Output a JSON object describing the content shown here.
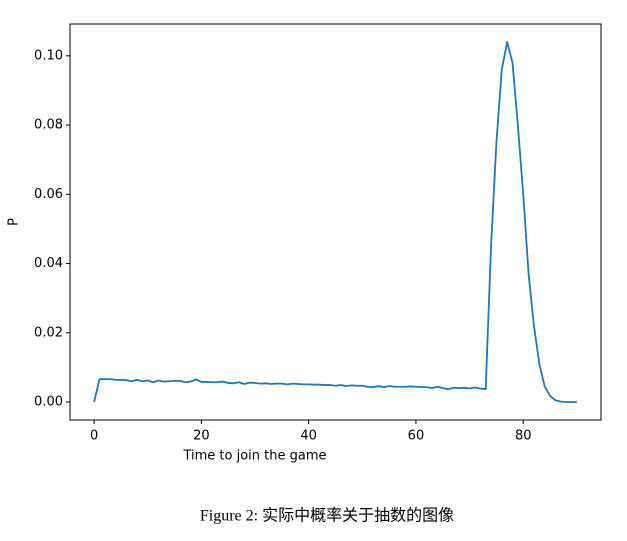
{
  "chart_data": {
    "type": "line",
    "x_label": "Time to join the game",
    "y_label": "P",
    "x": [
      0,
      1,
      2,
      3,
      4,
      5,
      6,
      7,
      8,
      9,
      10,
      11,
      12,
      13,
      14,
      15,
      16,
      17,
      18,
      19,
      20,
      21,
      22,
      23,
      24,
      25,
      26,
      27,
      28,
      29,
      30,
      31,
      32,
      33,
      34,
      35,
      36,
      37,
      38,
      39,
      40,
      41,
      42,
      43,
      44,
      45,
      46,
      47,
      48,
      49,
      50,
      51,
      52,
      53,
      54,
      55,
      56,
      57,
      58,
      59,
      60,
      61,
      62,
      63,
      64,
      65,
      66,
      67,
      68,
      69,
      70,
      71,
      72,
      73,
      74,
      75,
      76,
      77,
      78,
      79,
      80,
      81,
      82,
      83,
      84,
      85,
      86,
      87,
      88,
      89,
      90
    ],
    "values": [
      0,
      0.0066,
      0.0066,
      0.0066,
      0.0064,
      0.0064,
      0.0063,
      0.006,
      0.0064,
      0.006,
      0.0062,
      0.0057,
      0.0062,
      0.0059,
      0.006,
      0.0061,
      0.0061,
      0.0057,
      0.0059,
      0.0065,
      0.0058,
      0.0058,
      0.0057,
      0.0057,
      0.0059,
      0.0055,
      0.0054,
      0.0057,
      0.0052,
      0.0056,
      0.0055,
      0.0053,
      0.0054,
      0.0052,
      0.0053,
      0.0053,
      0.0051,
      0.0053,
      0.0052,
      0.0051,
      0.0051,
      0.005,
      0.005,
      0.0049,
      0.0049,
      0.0047,
      0.0049,
      0.0046,
      0.0048,
      0.0047,
      0.0047,
      0.0044,
      0.0043,
      0.0046,
      0.0043,
      0.0046,
      0.0044,
      0.0044,
      0.0044,
      0.0045,
      0.0044,
      0.0043,
      0.0043,
      0.004,
      0.0044,
      0.004,
      0.0037,
      0.0041,
      0.004,
      0.0041,
      0.0039,
      0.0042,
      0.0039,
      0.0037,
      0.045,
      0.075,
      0.096,
      0.104,
      0.098,
      0.08,
      0.06,
      0.037,
      0.022,
      0.011,
      0.0045,
      0.0018,
      0.0005,
      0.0001,
      0,
      0,
      0
    ],
    "color": "#1f77b4",
    "xlim": [
      -4.5,
      94.5
    ],
    "xticks": [
      0,
      20,
      40,
      60,
      80
    ],
    "ylim": [
      -0.0052,
      0.1092
    ],
    "yticks": [
      {
        "value": 0,
        "label": "0.00"
      },
      0.02,
      0.04,
      0.06,
      0.08,
      {
        "value": 0.1,
        "label": "0.10"
      }
    ]
  },
  "caption": "Figure 2: 实际中概率关于抽数的图像"
}
